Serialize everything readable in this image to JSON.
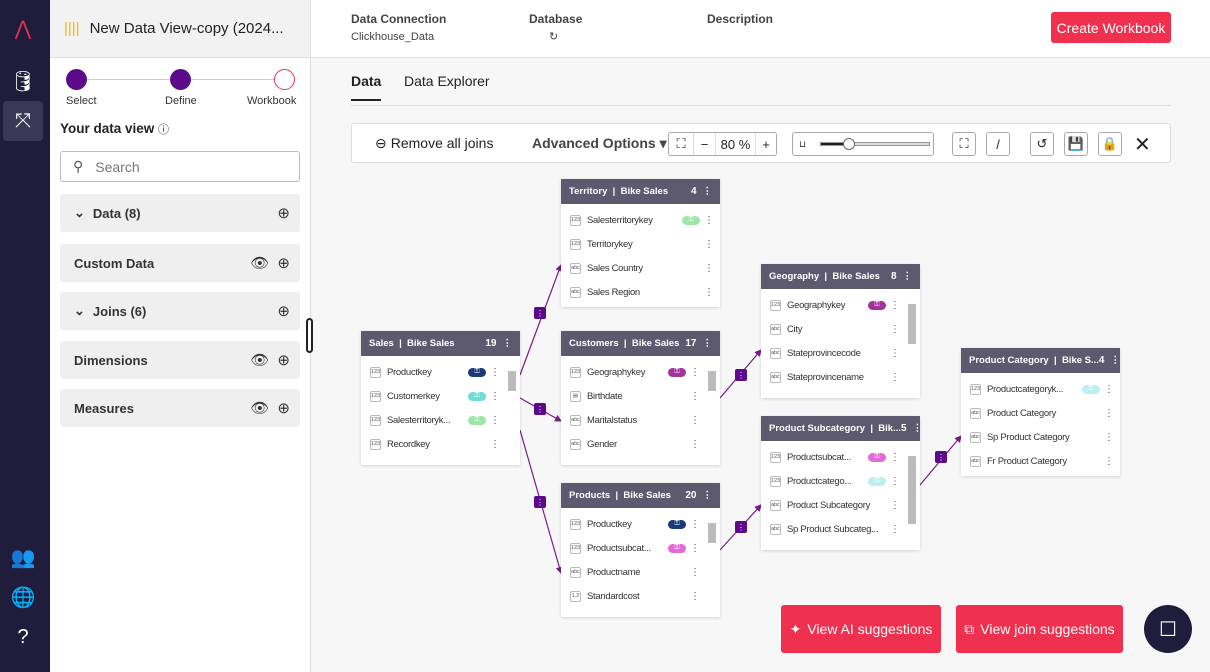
{
  "sidebar_title": "New Data View-copy (2024...",
  "steps": [
    "Select",
    "Define",
    "Workbook"
  ],
  "your_data_view": "Your data view",
  "search_placeholder": "Search",
  "sections": [
    {
      "label": "Data (8)"
    },
    {
      "label": "Custom Data"
    },
    {
      "label": "Joins (6)"
    },
    {
      "label": "Dimensions"
    },
    {
      "label": "Measures"
    }
  ],
  "header": {
    "conn_label": "Data Connection",
    "conn_value": "Clickhouse_Data",
    "db_label": "Database",
    "desc_label": "Description",
    "create": "Create Workbook"
  },
  "tabs": [
    "Data",
    "Data Explorer"
  ],
  "toolbar": {
    "remove_joins": "Remove all joins",
    "advanced": "Advanced Options",
    "zoom": "80 %"
  },
  "tables": [
    {
      "name": "Sales",
      "source": "Bike Sales",
      "count": "19",
      "fields": [
        {
          "t": "123",
          "n": "Productkey",
          "k": "#1a3a7a"
        },
        {
          "t": "123",
          "n": "Customerkey",
          "k": "#6fdcd6"
        },
        {
          "t": "123",
          "n": "Salesterritoryk...",
          "k": "#9ee6a6"
        },
        {
          "t": "123",
          "n": "Recordkey"
        }
      ]
    },
    {
      "name": "Territory",
      "source": "Bike Sales",
      "count": "4",
      "fields": [
        {
          "t": "123",
          "n": "Salesterritorykey",
          "k": "#9ee6a6"
        },
        {
          "t": "123",
          "n": "Territorykey"
        },
        {
          "t": "abc",
          "n": "Sales Country"
        },
        {
          "t": "abc",
          "n": "Sales Region"
        }
      ]
    },
    {
      "name": "Customers",
      "source": "Bike Sales",
      "count": "17",
      "fields": [
        {
          "t": "123",
          "n": "Geographykey",
          "k": "#a3329a"
        },
        {
          "t": "cal",
          "n": "Birthdate"
        },
        {
          "t": "abc",
          "n": "Maritalstatus"
        },
        {
          "t": "abc",
          "n": "Gender"
        }
      ]
    },
    {
      "name": "Products",
      "source": "Bike Sales",
      "count": "20",
      "fields": [
        {
          "t": "123",
          "n": "Productkey",
          "k": "#1a3a7a"
        },
        {
          "t": "123",
          "n": "Productsubcat...",
          "k": "#e66ad6"
        },
        {
          "t": "abc",
          "n": "Productname"
        },
        {
          "t": "1.2",
          "n": "Standardcost"
        }
      ]
    },
    {
      "name": "Geography",
      "source": "Bike Sales",
      "count": "8",
      "fields": [
        {
          "t": "123",
          "n": "Geographykey",
          "k": "#a3329a"
        },
        {
          "t": "abc",
          "n": "City"
        },
        {
          "t": "abc",
          "n": "Stateprovincecode"
        },
        {
          "t": "abc",
          "n": "Stateprovincename"
        }
      ]
    },
    {
      "name": "Product Subcategory",
      "source": "Bik...",
      "count": "5",
      "fields": [
        {
          "t": "123",
          "n": "Productsubcat...",
          "k": "#e66ad6"
        },
        {
          "t": "123",
          "n": "Productcatego...",
          "k": "#bdeef0"
        },
        {
          "t": "abc",
          "n": "Product Subcategory"
        },
        {
          "t": "abc",
          "n": "Sp Product Subcateg..."
        }
      ]
    },
    {
      "name": "Product Category",
      "source": "Bike S...",
      "count": "4",
      "fields": [
        {
          "t": "123",
          "n": "Productcategoryk...",
          "k": "#bdeef0"
        },
        {
          "t": "abc",
          "n": "Product Category"
        },
        {
          "t": "abc",
          "n": "Sp Product Category"
        },
        {
          "t": "abc",
          "n": "Fr Product Category"
        }
      ]
    }
  ],
  "ai_suggestions": "View AI suggestions",
  "join_suggestions": "View join suggestions"
}
